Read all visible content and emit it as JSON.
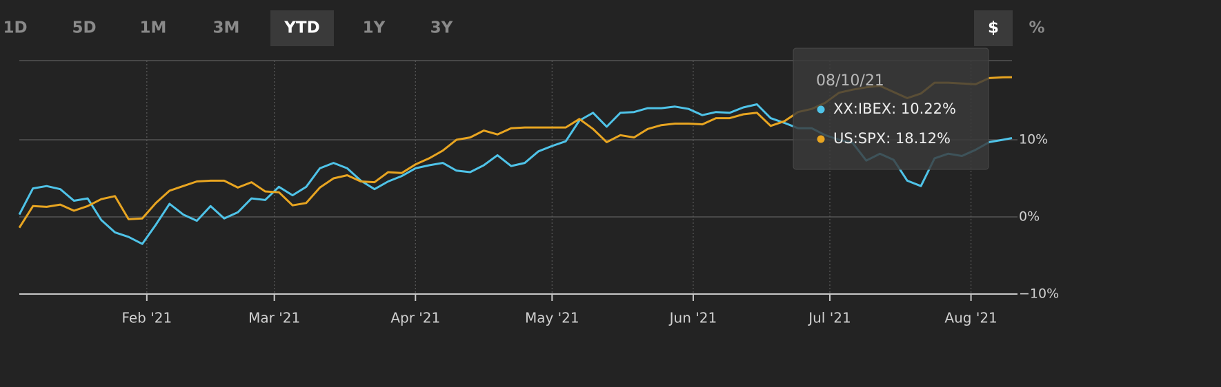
{
  "controls": {
    "ranges": [
      "1D",
      "5D",
      "1M",
      "3M",
      "YTD",
      "1Y",
      "3Y"
    ],
    "active_range_index": 4,
    "units": [
      "$",
      "%"
    ],
    "active_unit_index": 0
  },
  "chart_data": {
    "type": "line",
    "x": [
      4,
      7,
      10,
      13,
      16,
      19,
      22,
      25,
      28,
      31,
      34,
      37,
      40,
      43,
      46,
      49,
      52,
      55,
      58,
      61,
      64,
      67,
      70,
      73,
      76,
      79,
      82,
      85,
      88,
      91,
      94,
      97,
      100,
      103,
      106,
      109,
      112,
      115,
      118,
      121,
      124,
      127,
      130,
      133,
      136,
      139,
      142,
      145,
      148,
      151,
      154,
      157,
      160,
      163,
      166,
      169,
      172,
      175,
      178,
      181,
      184,
      187,
      190,
      193,
      196,
      199,
      202,
      205,
      208,
      211,
      214,
      217,
      220,
      222
    ],
    "xlim": [
      4,
      222
    ],
    "xticks": [
      {
        "value": 32,
        "label": "Feb '21"
      },
      {
        "value": 60,
        "label": "Mar '21"
      },
      {
        "value": 91,
        "label": "Apr '21"
      },
      {
        "value": 121,
        "label": "May '21"
      },
      {
        "value": 152,
        "label": "Jun '21"
      },
      {
        "value": 182,
        "label": "Jul '21"
      },
      {
        "value": 213,
        "label": "Aug '21"
      }
    ],
    "ylim": [
      -10,
      20
    ],
    "yticks": [
      {
        "value": -10,
        "label": "−10%"
      },
      {
        "value": 0,
        "label": "0%"
      },
      {
        "value": 10,
        "label": "10%"
      }
    ],
    "grid": true,
    "series": [
      {
        "name": "XX:IBEX",
        "color": "#4fc3e8",
        "values": [
          0.3,
          3.7,
          4.0,
          3.6,
          2.1,
          2.4,
          -0.4,
          -2.0,
          -2.6,
          -3.5,
          -1.0,
          1.7,
          0.3,
          -0.5,
          1.4,
          -0.2,
          0.6,
          2.4,
          2.2,
          3.9,
          2.8,
          3.9,
          6.3,
          7.0,
          6.3,
          4.7,
          3.6,
          4.6,
          5.3,
          6.3,
          6.7,
          7.0,
          6.0,
          5.8,
          6.7,
          8.0,
          6.6,
          7.0,
          8.5,
          9.2,
          9.8,
          12.5,
          13.5,
          11.7,
          13.5,
          13.6,
          14.1,
          14.1,
          14.3,
          14.0,
          13.2,
          13.6,
          13.5,
          14.2,
          14.6,
          12.8,
          12.2,
          11.5,
          11.5,
          10.6,
          10.0,
          9.6,
          7.3,
          8.2,
          7.4,
          4.7,
          4.0,
          7.6,
          8.2,
          7.9,
          8.7,
          9.7,
          10.0,
          10.22
        ]
      },
      {
        "name": "US:SPX",
        "color": "#e8a521",
        "values": [
          -1.4,
          1.4,
          1.3,
          1.6,
          0.8,
          1.4,
          2.3,
          2.7,
          -0.3,
          -0.2,
          1.8,
          3.4,
          4.0,
          4.6,
          4.7,
          4.7,
          3.8,
          4.5,
          3.3,
          3.2,
          1.5,
          1.8,
          3.8,
          5.0,
          5.4,
          4.6,
          4.5,
          5.8,
          5.7,
          6.8,
          7.6,
          8.6,
          10.0,
          10.3,
          11.2,
          10.7,
          11.5,
          11.6,
          11.6,
          11.6,
          11.6,
          12.7,
          11.4,
          9.7,
          10.6,
          10.3,
          11.4,
          11.9,
          12.1,
          12.1,
          12.0,
          12.8,
          12.8,
          13.3,
          13.5,
          11.8,
          12.4,
          13.6,
          14.0,
          14.8,
          16.1,
          16.5,
          16.8,
          17.0,
          16.2,
          15.4,
          16.0,
          17.4,
          17.4,
          17.3,
          17.2,
          18.0,
          18.1,
          18.12
        ]
      }
    ],
    "tooltip": {
      "date": "08/10/21",
      "lines": [
        "XX:IBEX: 10.22%",
        "US:SPX: 18.12%"
      ]
    }
  }
}
